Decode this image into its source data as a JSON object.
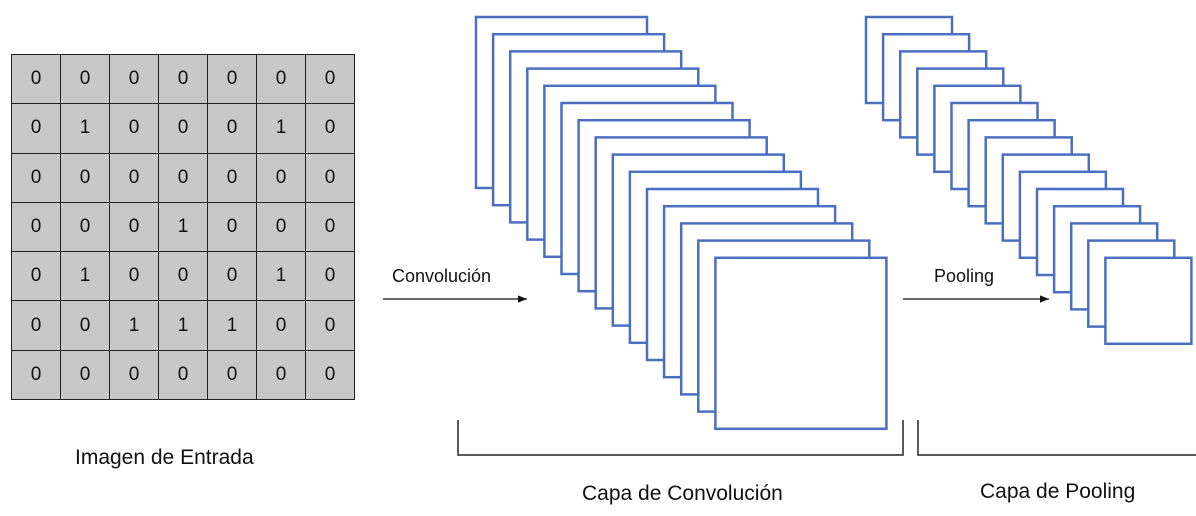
{
  "input_image": {
    "title": "Imagen de Entrada",
    "matrix": [
      [
        "0",
        "0",
        "0",
        "0",
        "0",
        "0",
        "0"
      ],
      [
        "0",
        "1",
        "0",
        "0",
        "0",
        "1",
        "0"
      ],
      [
        "0",
        "0",
        "0",
        "0",
        "0",
        "0",
        "0"
      ],
      [
        "0",
        "0",
        "0",
        "1",
        "0",
        "0",
        "0"
      ],
      [
        "0",
        "1",
        "0",
        "0",
        "0",
        "1",
        "0"
      ],
      [
        "0",
        "0",
        "1",
        "1",
        "1",
        "0",
        "0"
      ],
      [
        "0",
        "0",
        "0",
        "0",
        "0",
        "0",
        "0"
      ]
    ]
  },
  "convolution": {
    "arrow_label": "Convolución",
    "layer_label": "Capa de Convolución",
    "feature_map_count": 15
  },
  "pooling": {
    "arrow_label": "Pooling",
    "layer_label": "Capa de Pooling",
    "feature_map_count": 15
  },
  "colors": {
    "map_border": "#4a6fc0",
    "grid_fill": "#c8c8c8",
    "line": "#222222"
  }
}
